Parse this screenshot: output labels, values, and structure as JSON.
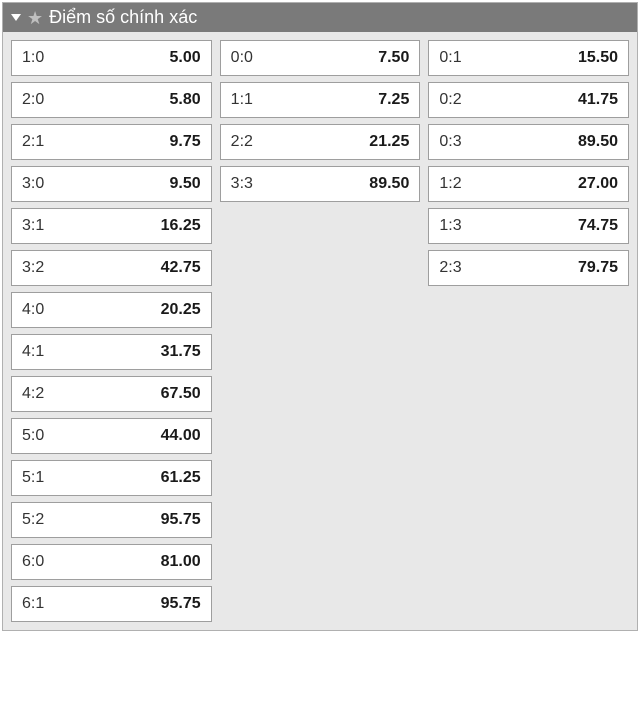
{
  "header": {
    "title": "Điểm số chính xác"
  },
  "columns": [
    {
      "id": "home-wins",
      "rows": [
        {
          "score": "1:0",
          "odds": "5.00"
        },
        {
          "score": "2:0",
          "odds": "5.80"
        },
        {
          "score": "2:1",
          "odds": "9.75"
        },
        {
          "score": "3:0",
          "odds": "9.50"
        },
        {
          "score": "3:1",
          "odds": "16.25"
        },
        {
          "score": "3:2",
          "odds": "42.75"
        },
        {
          "score": "4:0",
          "odds": "20.25"
        },
        {
          "score": "4:1",
          "odds": "31.75"
        },
        {
          "score": "4:2",
          "odds": "67.50"
        },
        {
          "score": "5:0",
          "odds": "44.00"
        },
        {
          "score": "5:1",
          "odds": "61.25"
        },
        {
          "score": "5:2",
          "odds": "95.75"
        },
        {
          "score": "6:0",
          "odds": "81.00"
        },
        {
          "score": "6:1",
          "odds": "95.75"
        }
      ]
    },
    {
      "id": "draws",
      "rows": [
        {
          "score": "0:0",
          "odds": "7.50"
        },
        {
          "score": "1:1",
          "odds": "7.25"
        },
        {
          "score": "2:2",
          "odds": "21.25"
        },
        {
          "score": "3:3",
          "odds": "89.50"
        }
      ]
    },
    {
      "id": "away-wins",
      "rows": [
        {
          "score": "0:1",
          "odds": "15.50"
        },
        {
          "score": "0:2",
          "odds": "41.75"
        },
        {
          "score": "0:3",
          "odds": "89.50"
        },
        {
          "score": "1:2",
          "odds": "27.00"
        },
        {
          "score": "1:3",
          "odds": "74.75"
        },
        {
          "score": "2:3",
          "odds": "79.75"
        }
      ]
    }
  ],
  "styling": {
    "panel_bg": "#e8e8e8",
    "panel_border": "#b0b0b0",
    "header_bg": "#7a7a7a",
    "header_text": "#ffffff",
    "star_color": "#bfbfbf",
    "cell_bg": "#ffffff",
    "cell_border": "#9e9e9e",
    "score_color": "#333333",
    "odds_color": "#1a1a1a",
    "font_size_header": 18,
    "font_size_cell": 16,
    "odds_font_weight": 700
  }
}
